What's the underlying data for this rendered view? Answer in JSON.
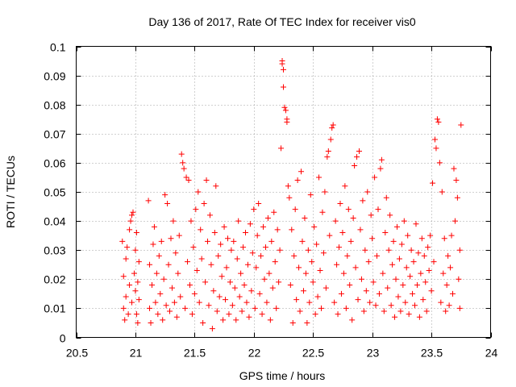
{
  "chart_data": {
    "type": "scatter",
    "title": "Day 136 of 2017, Rate Of TEC Index for receiver vis0",
    "xlabel": "GPS time / hours",
    "ylabel": "ROTI / TECUs",
    "xlim": [
      20.5,
      24
    ],
    "ylim": [
      0,
      0.1
    ],
    "grid": true,
    "marker": "+",
    "color": "#ff0000",
    "x_ticks": [
      {
        "value": 20.5,
        "label": "20.5"
      },
      {
        "value": 21,
        "label": "21"
      },
      {
        "value": 21.5,
        "label": "21.5"
      },
      {
        "value": 22,
        "label": "22"
      },
      {
        "value": 22.5,
        "label": "22.5"
      },
      {
        "value": 23,
        "label": "23"
      },
      {
        "value": 23.5,
        "label": "23.5"
      },
      {
        "value": 24,
        "label": "24"
      }
    ],
    "y_ticks": [
      {
        "value": 0,
        "label": "0"
      },
      {
        "value": 0.01,
        "label": "0.01"
      },
      {
        "value": 0.02,
        "label": "0.02"
      },
      {
        "value": 0.03,
        "label": "0.03"
      },
      {
        "value": 0.04,
        "label": "0.04"
      },
      {
        "value": 0.05,
        "label": "0.05"
      },
      {
        "value": 0.06,
        "label": "0.06"
      },
      {
        "value": 0.07,
        "label": "0.07"
      },
      {
        "value": 0.08,
        "label": "0.08"
      },
      {
        "value": 0.09,
        "label": "0.09"
      },
      {
        "value": 0.1,
        "label": "0.1"
      }
    ],
    "series": [
      {
        "name": "ROTI",
        "points": [
          [
            20.89,
            0.033
          ],
          [
            20.9,
            0.021
          ],
          [
            20.9,
            0.01
          ],
          [
            20.91,
            0.006
          ],
          [
            20.92,
            0.014
          ],
          [
            20.92,
            0.027
          ],
          [
            20.93,
            0.031
          ],
          [
            20.94,
            0.008
          ],
          [
            20.95,
            0.018
          ],
          [
            20.95,
            0.037
          ],
          [
            20.96,
            0.04
          ],
          [
            20.97,
            0.042
          ],
          [
            20.97,
            0.012
          ],
          [
            20.98,
            0.043
          ],
          [
            20.99,
            0.022
          ],
          [
            21.0,
            0.016
          ],
          [
            21.0,
            0.03
          ],
          [
            21.01,
            0.008
          ],
          [
            21.01,
            0.036
          ],
          [
            21.02,
            0.019
          ],
          [
            21.02,
            0.005
          ],
          [
            21.03,
            0.026
          ],
          [
            21.03,
            0.013
          ],
          [
            21.11,
            0.047
          ],
          [
            21.12,
            0.025
          ],
          [
            21.12,
            0.01
          ],
          [
            21.13,
            0.005
          ],
          [
            21.14,
            0.018
          ],
          [
            21.15,
            0.032
          ],
          [
            21.16,
            0.038
          ],
          [
            21.17,
            0.012
          ],
          [
            21.18,
            0.022
          ],
          [
            21.19,
            0.008
          ],
          [
            21.2,
            0.028
          ],
          [
            21.21,
            0.015
          ],
          [
            21.22,
            0.033
          ],
          [
            21.23,
            0.006
          ],
          [
            21.24,
            0.02
          ],
          [
            21.25,
            0.049
          ],
          [
            21.26,
            0.011
          ],
          [
            21.27,
            0.046
          ],
          [
            21.28,
            0.025
          ],
          [
            21.29,
            0.009
          ],
          [
            21.3,
            0.034
          ],
          [
            21.31,
            0.017
          ],
          [
            21.32,
            0.04
          ],
          [
            21.33,
            0.012
          ],
          [
            21.34,
            0.029
          ],
          [
            21.35,
            0.007
          ],
          [
            21.36,
            0.022
          ],
          [
            21.37,
            0.035
          ],
          [
            21.38,
            0.014
          ],
          [
            21.39,
            0.063
          ],
          [
            21.4,
            0.06
          ],
          [
            21.41,
            0.058
          ],
          [
            21.42,
            0.01
          ],
          [
            21.43,
            0.055
          ],
          [
            21.44,
            0.026
          ],
          [
            21.45,
            0.054
          ],
          [
            21.46,
            0.018
          ],
          [
            21.47,
            0.04
          ],
          [
            21.48,
            0.008
          ],
          [
            21.49,
            0.031
          ],
          [
            21.5,
            0.015
          ],
          [
            21.51,
            0.044
          ],
          [
            21.52,
            0.023
          ],
          [
            21.53,
            0.05
          ],
          [
            21.54,
            0.012
          ],
          [
            21.55,
            0.037
          ],
          [
            21.56,
            0.027
          ],
          [
            21.57,
            0.005
          ],
          [
            21.58,
            0.046
          ],
          [
            21.59,
            0.019
          ],
          [
            21.6,
            0.054
          ],
          [
            21.61,
            0.033
          ],
          [
            21.62,
            0.011
          ],
          [
            21.63,
            0.042
          ],
          [
            21.64,
            0.025
          ],
          [
            21.65,
            0.003
          ],
          [
            21.66,
            0.016
          ],
          [
            21.67,
            0.036
          ],
          [
            21.68,
            0.052
          ],
          [
            21.69,
            0.009
          ],
          [
            21.7,
            0.028
          ],
          [
            21.71,
            0.014
          ],
          [
            21.72,
            0.032
          ],
          [
            21.73,
            0.021
          ],
          [
            21.74,
            0.006
          ],
          [
            21.75,
            0.038
          ],
          [
            21.76,
            0.013
          ],
          [
            21.77,
            0.024
          ],
          [
            21.78,
            0.034
          ],
          [
            21.79,
            0.008
          ],
          [
            21.8,
            0.019
          ],
          [
            21.81,
            0.03
          ],
          [
            21.82,
            0.011
          ],
          [
            21.83,
            0.033
          ],
          [
            21.84,
            0.017
          ],
          [
            21.85,
            0.006
          ],
          [
            21.86,
            0.027
          ],
          [
            21.87,
            0.04
          ],
          [
            21.88,
            0.014
          ],
          [
            21.89,
            0.022
          ],
          [
            21.9,
            0.009
          ],
          [
            21.91,
            0.031
          ],
          [
            21.92,
            0.018
          ],
          [
            21.93,
            0.036
          ],
          [
            21.94,
            0.012
          ],
          [
            21.95,
            0.025
          ],
          [
            21.96,
            0.007
          ],
          [
            21.97,
            0.039
          ],
          [
            21.98,
            0.016
          ],
          [
            21.99,
            0.029
          ],
          [
            22.0,
            0.044
          ],
          [
            22.01,
            0.01
          ],
          [
            22.02,
            0.024
          ],
          [
            22.03,
            0.035
          ],
          [
            22.04,
            0.046
          ],
          [
            22.05,
            0.015
          ],
          [
            22.06,
            0.028
          ],
          [
            22.07,
            0.008
          ],
          [
            22.08,
            0.038
          ],
          [
            22.09,
            0.02
          ],
          [
            22.1,
            0.031
          ],
          [
            22.11,
            0.012
          ],
          [
            22.12,
            0.041
          ],
          [
            22.13,
            0.022
          ],
          [
            22.14,
            0.006
          ],
          [
            22.15,
            0.033
          ],
          [
            22.16,
            0.017
          ],
          [
            22.17,
            0.043
          ],
          [
            22.18,
            0.026
          ],
          [
            22.19,
            0.01
          ],
          [
            22.2,
            0.037
          ],
          [
            22.21,
            0.019
          ],
          [
            22.22,
            0.03
          ],
          [
            22.23,
            0.065
          ],
          [
            22.24,
            0.095
          ],
          [
            22.24,
            0.094
          ],
          [
            22.25,
            0.092
          ],
          [
            22.25,
            0.086
          ],
          [
            22.26,
            0.079
          ],
          [
            22.27,
            0.078
          ],
          [
            22.28,
            0.075
          ],
          [
            22.28,
            0.074
          ],
          [
            22.29,
            0.052
          ],
          [
            22.3,
            0.048
          ],
          [
            22.31,
            0.018
          ],
          [
            22.32,
            0.037
          ],
          [
            22.33,
            0.005
          ],
          [
            22.34,
            0.028
          ],
          [
            22.35,
            0.044
          ],
          [
            22.36,
            0.013
          ],
          [
            22.37,
            0.054
          ],
          [
            22.38,
            0.024
          ],
          [
            22.39,
            0.009
          ],
          [
            22.4,
            0.057
          ],
          [
            22.41,
            0.033
          ],
          [
            22.42,
            0.016
          ],
          [
            22.43,
            0.041
          ],
          [
            22.44,
            0.022
          ],
          [
            22.45,
            0.005
          ],
          [
            22.46,
            0.03
          ],
          [
            22.47,
            0.012
          ],
          [
            22.48,
            0.049
          ],
          [
            22.49,
            0.026
          ],
          [
            22.5,
            0.019
          ],
          [
            22.51,
            0.038
          ],
          [
            22.52,
            0.008
          ],
          [
            22.53,
            0.032
          ],
          [
            22.54,
            0.014
          ],
          [
            22.55,
            0.055
          ],
          [
            22.56,
            0.023
          ],
          [
            22.57,
            0.01
          ],
          [
            22.58,
            0.043
          ],
          [
            22.59,
            0.029
          ],
          [
            22.6,
            0.05
          ],
          [
            22.61,
            0.017
          ],
          [
            22.62,
            0.062
          ],
          [
            22.63,
            0.064
          ],
          [
            22.64,
            0.035
          ],
          [
            22.65,
            0.068
          ],
          [
            22.66,
            0.072
          ],
          [
            22.67,
            0.073
          ],
          [
            22.68,
            0.012
          ],
          [
            22.69,
            0.04
          ],
          [
            22.7,
            0.025
          ],
          [
            22.71,
            0.008
          ],
          [
            22.72,
            0.031
          ],
          [
            22.73,
            0.046
          ],
          [
            22.74,
            0.015
          ],
          [
            22.75,
            0.036
          ],
          [
            22.76,
            0.022
          ],
          [
            22.77,
            0.052
          ],
          [
            22.78,
            0.01
          ],
          [
            22.79,
            0.028
          ],
          [
            22.8,
            0.044
          ],
          [
            22.81,
            0.018
          ],
          [
            22.82,
            0.033
          ],
          [
            22.83,
            0.006
          ],
          [
            22.84,
            0.041
          ],
          [
            22.85,
            0.059
          ],
          [
            22.86,
            0.024
          ],
          [
            22.87,
            0.062
          ],
          [
            22.88,
            0.013
          ],
          [
            22.89,
            0.064
          ],
          [
            22.9,
            0.037
          ],
          [
            22.91,
            0.02
          ],
          [
            22.92,
            0.047
          ],
          [
            22.93,
            0.009
          ],
          [
            22.94,
            0.03
          ],
          [
            22.95,
            0.016
          ],
          [
            22.96,
            0.05
          ],
          [
            22.97,
            0.026
          ],
          [
            22.98,
            0.012
          ],
          [
            22.99,
            0.042
          ],
          [
            23.0,
            0.034
          ],
          [
            23.01,
            0.019
          ],
          [
            23.02,
            0.055
          ],
          [
            23.03,
            0.011
          ],
          [
            23.04,
            0.028
          ],
          [
            23.05,
            0.044
          ],
          [
            23.06,
            0.015
          ],
          [
            23.07,
            0.058
          ],
          [
            23.08,
            0.061
          ],
          [
            23.09,
            0.022
          ],
          [
            23.1,
            0.009
          ],
          [
            23.11,
            0.036
          ],
          [
            23.12,
            0.048
          ],
          [
            23.13,
            0.017
          ],
          [
            23.14,
            0.03
          ],
          [
            23.15,
            0.042
          ],
          [
            23.16,
            0.011
          ],
          [
            23.17,
            0.025
          ],
          [
            23.18,
            0.033
          ],
          [
            23.19,
            0.007
          ],
          [
            23.2,
            0.02
          ],
          [
            23.21,
            0.038
          ],
          [
            23.22,
            0.014
          ],
          [
            23.23,
            0.027
          ],
          [
            23.24,
            0.009
          ],
          [
            23.25,
            0.032
          ],
          [
            23.26,
            0.018
          ],
          [
            23.27,
            0.04
          ],
          [
            23.28,
            0.012
          ],
          [
            23.29,
            0.024
          ],
          [
            23.3,
            0.035
          ],
          [
            23.31,
            0.008
          ],
          [
            23.32,
            0.021
          ],
          [
            23.33,
            0.03
          ],
          [
            23.34,
            0.015
          ],
          [
            23.35,
            0.026
          ],
          [
            23.36,
            0.011
          ],
          [
            23.37,
            0.039
          ],
          [
            23.38,
            0.018
          ],
          [
            23.39,
            0.029
          ],
          [
            23.4,
            0.007
          ],
          [
            23.41,
            0.022
          ],
          [
            23.42,
            0.034
          ],
          [
            23.43,
            0.013
          ],
          [
            23.44,
            0.028
          ],
          [
            23.45,
            0.019
          ],
          [
            23.46,
            0.009
          ],
          [
            23.47,
            0.031
          ],
          [
            23.48,
            0.023
          ],
          [
            23.49,
            0.035
          ],
          [
            23.5,
            0.016
          ],
          [
            23.51,
            0.053
          ],
          [
            23.52,
            0.026
          ],
          [
            23.53,
            0.068
          ],
          [
            23.54,
            0.065
          ],
          [
            23.55,
            0.075
          ],
          [
            23.56,
            0.074
          ],
          [
            23.57,
            0.06
          ],
          [
            23.58,
            0.012
          ],
          [
            23.59,
            0.05
          ],
          [
            23.6,
            0.022
          ],
          [
            23.61,
            0.034
          ],
          [
            23.62,
            0.009
          ],
          [
            23.63,
            0.018
          ],
          [
            23.64,
            0.028
          ],
          [
            23.65,
            0.011
          ],
          [
            23.66,
            0.024
          ],
          [
            23.67,
            0.035
          ],
          [
            23.68,
            0.015
          ],
          [
            23.69,
            0.058
          ],
          [
            23.7,
            0.04
          ],
          [
            23.71,
            0.054
          ],
          [
            23.72,
            0.048
          ],
          [
            23.73,
            0.02
          ],
          [
            23.74,
            0.03
          ],
          [
            23.74,
            0.01
          ],
          [
            23.75,
            0.073
          ]
        ]
      }
    ]
  }
}
